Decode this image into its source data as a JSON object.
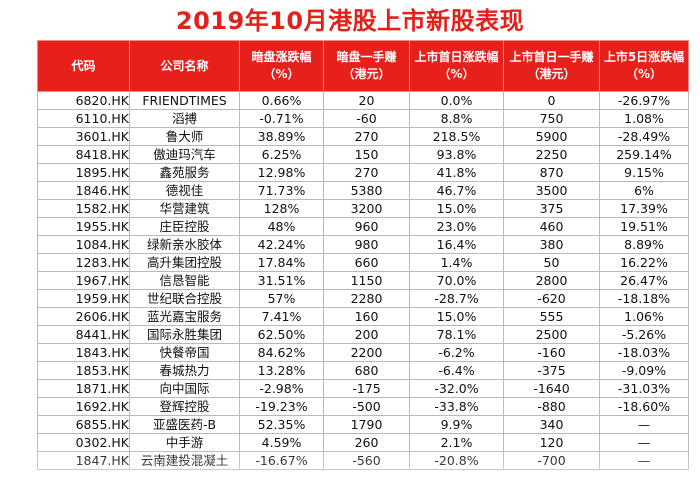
{
  "title": "2019年10月港股上市新股表现",
  "columns": [
    {
      "line1": "代码",
      "line2": ""
    },
    {
      "line1": "公司名称",
      "line2": ""
    },
    {
      "line1": "暗盘涨跌幅",
      "line2": "（%）"
    },
    {
      "line1": "暗盘一手赚",
      "line2": "（港元）"
    },
    {
      "line1": "上市首日涨跌幅",
      "line2": "（%）"
    },
    {
      "line1": "上市首日一手赚",
      "line2": "（港元）"
    },
    {
      "line1": "上市5日涨跌幅",
      "line2": "（%）"
    }
  ],
  "rows": [
    [
      "6820.HK",
      "FRIENDTIMES",
      "0.66%",
      "20",
      "0.0%",
      "0",
      "-26.97%"
    ],
    [
      "6110.HK",
      "滔搏",
      "-0.71%",
      "-60",
      "8.8%",
      "750",
      "1.08%"
    ],
    [
      "3601.HK",
      "鲁大师",
      "38.89%",
      "270",
      "218.5%",
      "5900",
      "-28.49%"
    ],
    [
      "8418.HK",
      "傲迪玛汽车",
      "6.25%",
      "150",
      "93.8%",
      "2250",
      "259.14%"
    ],
    [
      "1895.HK",
      "鑫苑服务",
      "12.98%",
      "270",
      "41.8%",
      "870",
      "9.15%"
    ],
    [
      "1846.HK",
      "德视佳",
      "71.73%",
      "5380",
      "46.7%",
      "3500",
      "6%"
    ],
    [
      "1582.HK",
      "华营建筑",
      "128%",
      "3200",
      "15.0%",
      "375",
      "17.39%"
    ],
    [
      "1955.HK",
      "庄臣控股",
      "48%",
      "960",
      "23.0%",
      "460",
      "19.51%"
    ],
    [
      "1084.HK",
      "绿新亲水胶体",
      "42.24%",
      "980",
      "16.4%",
      "380",
      "8.89%"
    ],
    [
      "1283.HK",
      "高升集团控股",
      "17.84%",
      "660",
      "1.4%",
      "50",
      "16.22%"
    ],
    [
      "1967.HK",
      "信恳智能",
      "31.51%",
      "1150",
      "70.0%",
      "2800",
      "26.47%"
    ],
    [
      "1959.HK",
      "世纪联合控股",
      "57%",
      "2280",
      "-28.7%",
      "-620",
      "-18.18%"
    ],
    [
      "2606.HK",
      "蓝光嘉宝服务",
      "7.41%",
      "160",
      "15.0%",
      "555",
      "1.06%"
    ],
    [
      "8441.HK",
      "国际永胜集团",
      "62.50%",
      "200",
      "78.1%",
      "2500",
      "-5.26%"
    ],
    [
      "1843.HK",
      "快餐帝国",
      "84.62%",
      "2200",
      "-6.2%",
      "-160",
      "-18.03%"
    ],
    [
      "1853.HK",
      "春城热力",
      "13.28%",
      "680",
      "-6.4%",
      "-375",
      "-9.09%"
    ],
    [
      "1871.HK",
      "向中国际",
      "-2.98%",
      "-175",
      "-32.0%",
      "-1640",
      "-31.03%"
    ],
    [
      "1692.HK",
      "登辉控股",
      "-19.23%",
      "-500",
      "-33.8%",
      "-880",
      "-18.60%"
    ],
    [
      "6855.HK",
      "亚盛医药-B",
      "52.35%",
      "1790",
      "9.9%",
      "340",
      "—"
    ],
    [
      "0302.HK",
      "中手游",
      "4.59%",
      "260",
      "2.1%",
      "120",
      "—"
    ],
    [
      "1847.HK",
      "云南建投混凝土",
      "-16.67%",
      "-560",
      "-20.8%",
      "-700",
      "—"
    ]
  ],
  "colors": {
    "title": "#e4201b",
    "header_bg": "#e8201c",
    "header_text": "#ffffff",
    "grid": "#b9b9b9"
  }
}
